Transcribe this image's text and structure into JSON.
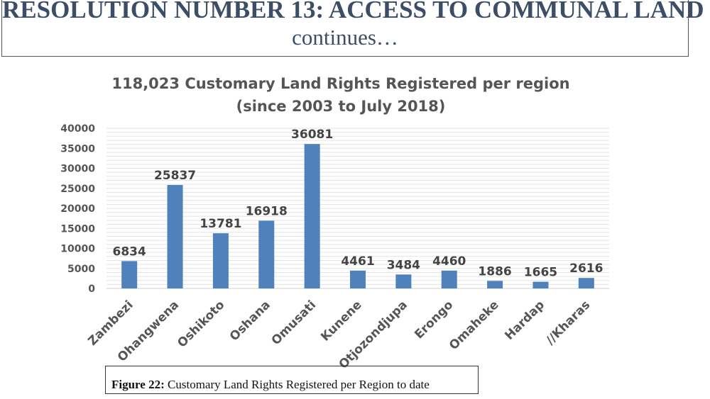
{
  "header": {
    "title": "RESOLUTION NUMBER 13: ACCESS TO COMMUNAL LAND",
    "subtitle": "continues…"
  },
  "chart_data": {
    "type": "bar",
    "title": "118,023 Customary Land Rights Registered per region",
    "subtitle": "(since 2003 to July 2018)",
    "categories": [
      "Zambezi",
      "Ohangwena",
      "Oshikoto",
      "Oshana",
      "Omusati",
      "Kunene",
      "Otjozondjupa",
      "Erongo",
      "Omaheke",
      "Hardap",
      "//Kharas"
    ],
    "values": [
      6834,
      25837,
      13781,
      16918,
      36081,
      4461,
      3484,
      4460,
      1886,
      1665,
      2616
    ],
    "data_labels": [
      "6834",
      "25837",
      "13781",
      "16918",
      "36081",
      "4461",
      "3484",
      "4460",
      "1886",
      "1665",
      "2616"
    ],
    "ylim": [
      0,
      40000
    ],
    "yticks": [
      "0",
      "5000",
      "10000",
      "15000",
      "20000",
      "25000",
      "30000",
      "35000",
      "40000"
    ],
    "grid": true,
    "bar_color": "#4f81bd"
  },
  "caption": {
    "label": "Figure 22:",
    "text": " Customary Land Rights Registered per Region to date"
  }
}
